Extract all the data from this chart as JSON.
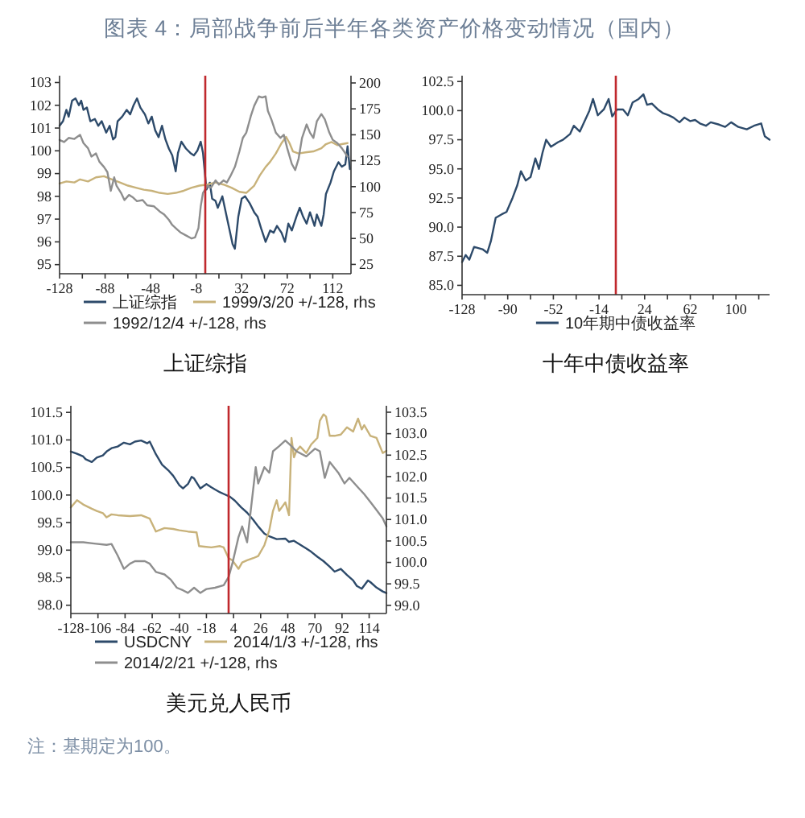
{
  "chart_data": [
    {
      "type": "line",
      "title": "上证综指",
      "annotations": [
        "图表 4：局部战争前后半年各类资产价格变动情况（国内）"
      ],
      "legend": "bottom",
      "xlim": [
        -128,
        128
      ],
      "xticks": [
        -128,
        {
          "value": -108,
          "label": null
        },
        -88,
        {
          "value": -68,
          "label": null
        },
        -48,
        {
          "value": -28,
          "label": null
        },
        -8,
        {
          "value": 12,
          "label": null
        },
        32,
        {
          "value": 52,
          "label": null
        },
        72,
        {
          "value": 92,
          "label": null
        },
        112
      ],
      "ylim": [
        94.6,
        103.3
      ],
      "yticks": [
        95,
        96,
        97,
        98,
        99,
        100,
        101,
        102,
        103
      ],
      "y2lim": [
        16,
        207
      ],
      "y2ticks": [
        25,
        50,
        75,
        100,
        125,
        150,
        175,
        200
      ],
      "ref_lines": [
        {
          "axis": "x",
          "value": 0,
          "color": "#c0282d"
        }
      ],
      "series": [
        {
          "name": "上证综指",
          "color": "#2d4a6a",
          "x": [
            -128,
            -125,
            -122,
            -120,
            -117,
            -114,
            -111,
            -109,
            -107,
            -104,
            -101,
            -97,
            -94,
            -91,
            -87,
            -84,
            -81,
            -79,
            -77,
            -73,
            -69,
            -66,
            -63,
            -60,
            -57,
            -53,
            -50,
            -47,
            -44,
            -41,
            -38,
            -35,
            -32,
            -29,
            -26,
            -24,
            -21,
            -17,
            -13,
            -10,
            -7,
            -4,
            -2,
            1,
            4,
            6,
            9,
            11,
            15,
            18,
            21,
            24,
            26,
            29,
            32,
            35,
            39,
            43,
            46,
            49,
            53,
            57,
            60,
            63,
            67,
            70,
            73,
            76,
            80,
            83,
            86,
            89,
            92,
            96,
            98,
            102,
            104,
            106,
            110,
            113,
            117,
            120,
            123,
            125,
            127
          ],
          "values": [
            101.1,
            101.3,
            101.8,
            101.5,
            102.2,
            102.3,
            102.0,
            102.2,
            101.8,
            101.9,
            101.3,
            101.4,
            101.1,
            101.3,
            100.8,
            101.1,
            100.5,
            100.6,
            101.3,
            101.5,
            101.8,
            101.6,
            102.0,
            102.3,
            101.9,
            101.6,
            101.2,
            101.5,
            100.9,
            100.6,
            101.1,
            100.5,
            100.1,
            99.8,
            99.1,
            99.9,
            100.4,
            100.1,
            99.9,
            99.8,
            100.0,
            100.4,
            99.9,
            98.3,
            98.6,
            97.9,
            97.8,
            97.5,
            98.0,
            97.3,
            96.6,
            95.9,
            95.7,
            97.1,
            97.9,
            98.0,
            97.7,
            97.3,
            97.1,
            96.6,
            96.0,
            96.5,
            96.4,
            96.7,
            96.4,
            96.0,
            96.8,
            96.5,
            97.1,
            97.5,
            97.1,
            96.8,
            97.3,
            96.7,
            97.2,
            96.7,
            97.2,
            98.1,
            98.6,
            99.1,
            99.5,
            99.3,
            99.4,
            100.2,
            99.2
          ]
        },
        {
          "name": "1999/3/20 +/-128, rhs",
          "color": "#c8b27a",
          "axis": "y2",
          "x": [
            -128,
            -122,
            -115,
            -110,
            -103,
            -96,
            -89,
            -82,
            -75,
            -68,
            -61,
            -54,
            -47,
            -40,
            -33,
            -26,
            -19,
            -12,
            -5,
            2,
            9,
            16,
            23,
            30,
            36,
            43,
            48,
            53,
            57,
            62,
            67,
            71,
            74,
            77,
            82,
            88,
            95,
            102,
            106,
            111,
            116,
            120,
            125
          ],
          "values": [
            103,
            105,
            104,
            107,
            105,
            109,
            110,
            107,
            104,
            101,
            99,
            97,
            96,
            94,
            93,
            94,
            96,
            99,
            101,
            102,
            104,
            102,
            99,
            95,
            94,
            101,
            111,
            119,
            124,
            132,
            142,
            148,
            142,
            134,
            132,
            133,
            134,
            137,
            141,
            143,
            140,
            141,
            142
          ]
        },
        {
          "name": "1992/12/4 +/-128, rhs",
          "color": "#8e8e8e",
          "axis": "y2",
          "x": [
            -128,
            -124,
            -120,
            -115,
            -110,
            -107,
            -103,
            -100,
            -96,
            -93,
            -89,
            -86,
            -83,
            -80,
            -78,
            -74,
            -71,
            -67,
            -64,
            -60,
            -55,
            -51,
            -45,
            -40,
            -36,
            -32,
            -29,
            -25,
            -22,
            -17,
            -12,
            -9,
            -6,
            -4,
            -2,
            2,
            5,
            9,
            12,
            16,
            19,
            22,
            26,
            30,
            33,
            36,
            40,
            43,
            47,
            50,
            53,
            55,
            58,
            62,
            66,
            69,
            72,
            76,
            79,
            82,
            85,
            89,
            92,
            95,
            98,
            102,
            105,
            109,
            112,
            116,
            120,
            125
          ],
          "values": [
            145,
            143,
            147,
            146,
            150,
            142,
            137,
            129,
            132,
            124,
            119,
            114,
            96,
            109,
            101,
            94,
            87,
            92,
            90,
            86,
            87,
            82,
            81,
            76,
            73,
            68,
            63,
            59,
            56,
            53,
            50,
            51,
            60,
            81,
            94,
            101,
            99,
            106,
            102,
            106,
            104,
            110,
            119,
            134,
            147,
            152,
            168,
            178,
            187,
            186,
            187,
            173,
            165,
            152,
            147,
            150,
            137,
            122,
            116,
            127,
            147,
            160,
            152,
            147,
            163,
            170,
            165,
            152,
            145,
            142,
            137,
            129
          ]
        }
      ]
    },
    {
      "type": "line",
      "title": "十年中债收益率",
      "legend": "bottom",
      "xlim": [
        -128,
        128
      ],
      "xticks": [
        -128,
        {
          "value": -109,
          "label": null
        },
        -90,
        {
          "value": -71,
          "label": null
        },
        -52,
        {
          "value": -33,
          "label": null
        },
        -14,
        {
          "value": 5,
          "label": null
        },
        24,
        {
          "value": 43,
          "label": null
        },
        62,
        {
          "value": 81,
          "label": null
        },
        100,
        {
          "value": 119,
          "label": null
        }
      ],
      "ylim": [
        84.2,
        103
      ],
      "yticks": [
        {
          "value": 85,
          "label": "85.0"
        },
        87.5,
        {
          "value": 90,
          "label": "90.0"
        },
        92.5,
        {
          "value": 95,
          "label": "95.0"
        },
        97.5,
        {
          "value": 100,
          "label": "100.0"
        },
        102.5
      ],
      "ref_lines": [
        {
          "axis": "x",
          "value": 0,
          "color": "#c0282d"
        }
      ],
      "series": [
        {
          "name": "10年期中债收益率",
          "color": "#2d4a6a",
          "x": [
            -128,
            -125,
            -122,
            -118,
            -111,
            -107,
            -104,
            -100,
            -95,
            -91,
            -86,
            -82,
            -79,
            -75,
            -71,
            -67,
            -64,
            -61,
            -58,
            -54,
            -48,
            -44,
            -38,
            -35,
            -30,
            -26,
            -22,
            -19,
            -15,
            -10,
            -6,
            -3,
            1,
            6,
            10,
            14,
            19,
            23,
            26,
            30,
            35,
            39,
            44,
            48,
            53,
            57,
            62,
            66,
            70,
            75,
            79,
            86,
            91,
            96,
            102,
            109,
            115,
            121,
            124,
            128
          ],
          "values": [
            87.0,
            87.6,
            87.2,
            88.3,
            88.1,
            87.8,
            88.8,
            90.8,
            91.1,
            91.3,
            92.5,
            93.6,
            94.8,
            94.0,
            94.3,
            95.9,
            95.0,
            96.4,
            97.5,
            96.9,
            97.3,
            97.5,
            98.0,
            98.7,
            98.2,
            99.1,
            100.0,
            101.0,
            99.6,
            100.1,
            101.0,
            99.5,
            100.1,
            100.1,
            99.6,
            100.7,
            101.0,
            101.4,
            100.5,
            100.6,
            100.1,
            99.8,
            99.6,
            99.4,
            99.0,
            99.4,
            99.1,
            99.2,
            98.9,
            98.7,
            99.0,
            98.8,
            98.6,
            99.0,
            98.6,
            98.4,
            98.7,
            98.9,
            97.8,
            97.5
          ]
        }
      ]
    },
    {
      "type": "line",
      "title": "美元兑人民币",
      "annotations": [
        "注：基期定为100。"
      ],
      "legend": "bottom",
      "xlim": [
        -128,
        128
      ],
      "xticks": [
        -128,
        -106,
        -84,
        -62,
        -40,
        -18,
        4,
        26,
        48,
        70,
        92,
        114
      ],
      "ylim": [
        97.85,
        101.62
      ],
      "yticks": [
        {
          "value": 98,
          "label": "98.0"
        },
        98.5,
        {
          "value": 99,
          "label": "99.0"
        },
        99.5,
        {
          "value": 100,
          "label": "100.0"
        },
        100.5,
        {
          "value": 101,
          "label": "101.0"
        },
        101.5
      ],
      "y2lim": [
        98.81,
        103.65
      ],
      "y2ticks": [
        {
          "value": 99,
          "label": "99.0"
        },
        99.5,
        {
          "value": 100,
          "label": "100.0"
        },
        100.5,
        {
          "value": 101,
          "label": "101.0"
        },
        101.5,
        {
          "value": 102,
          "label": "102.0"
        },
        102.5,
        {
          "value": 103,
          "label": "103.0"
        },
        103.5
      ],
      "ref_lines": [
        {
          "axis": "x",
          "value": 0,
          "color": "#c0282d"
        }
      ],
      "series": [
        {
          "name": "USDCNY",
          "color": "#2d4a6a",
          "x": [
            -128,
            -123,
            -118,
            -116,
            -111,
            -107,
            -102,
            -99,
            -95,
            -90,
            -85,
            -80,
            -76,
            -71,
            -66,
            -64,
            -59,
            -54,
            -49,
            -45,
            -40,
            -37,
            -33,
            -30,
            -28,
            -23,
            -18,
            -14,
            -11,
            -7,
            -4,
            1,
            5,
            10,
            15,
            20,
            24,
            29,
            33,
            39,
            46,
            49,
            53,
            58,
            63,
            67,
            72,
            77,
            82,
            86,
            91,
            96,
            101,
            104,
            108,
            113,
            115,
            120,
            125,
            128
          ],
          "values": [
            100.79,
            100.75,
            100.7,
            100.65,
            100.6,
            100.68,
            100.72,
            100.79,
            100.85,
            100.88,
            100.95,
            100.92,
            100.97,
            100.99,
            100.94,
            100.97,
            100.74,
            100.55,
            100.45,
            100.35,
            100.18,
            100.12,
            100.2,
            100.33,
            100.3,
            100.12,
            100.2,
            100.14,
            100.1,
            100.05,
            100.02,
            99.97,
            99.9,
            99.78,
            99.68,
            99.55,
            99.43,
            99.3,
            99.25,
            99.2,
            99.21,
            99.15,
            99.17,
            99.1,
            99.03,
            98.97,
            98.88,
            98.8,
            98.7,
            98.61,
            98.66,
            98.55,
            98.45,
            98.35,
            98.3,
            98.45,
            98.42,
            98.32,
            98.25,
            98.22
          ]
        },
        {
          "name": "2014/1/3 +/-128, rhs",
          "color": "#c8b27a",
          "axis": "y2",
          "x": [
            -128,
            -123,
            -118,
            -111,
            -107,
            -102,
            -99,
            -95,
            -90,
            -80,
            -71,
            -64,
            -59,
            -52,
            -45,
            -40,
            -33,
            -26,
            -24,
            -14,
            -7,
            -4,
            0,
            3,
            8,
            11,
            15,
            20,
            24,
            29,
            33,
            36,
            39,
            41,
            46,
            49,
            51,
            53,
            55,
            58,
            63,
            67,
            72,
            74,
            77,
            79,
            82,
            86,
            91,
            96,
            101,
            105,
            108,
            110,
            115,
            120,
            125,
            128
          ],
          "values": [
            101.28,
            101.45,
            101.35,
            101.25,
            101.2,
            101.15,
            101.05,
            101.12,
            101.1,
            101.08,
            101.1,
            101.02,
            100.72,
            100.8,
            100.78,
            100.75,
            100.72,
            100.7,
            100.38,
            100.35,
            100.38,
            100.35,
            100.1,
            100.05,
            99.85,
            100.0,
            100.05,
            100.1,
            100.15,
            100.4,
            100.75,
            101.2,
            101.45,
            101.2,
            101.4,
            101.1,
            102.9,
            102.45,
            102.6,
            102.7,
            102.55,
            102.75,
            102.9,
            103.3,
            103.45,
            103.4,
            102.95,
            102.95,
            102.98,
            103.15,
            103.05,
            103.35,
            103.1,
            103.2,
            102.95,
            102.9,
            102.55,
            102.6
          ]
        },
        {
          "name": "2014/2/21 +/-128, rhs",
          "color": "#8e8e8e",
          "axis": "y2",
          "x": [
            -128,
            -118,
            -109,
            -99,
            -95,
            -90,
            -85,
            -80,
            -76,
            -68,
            -64,
            -59,
            -52,
            -47,
            -42,
            -37,
            -33,
            -28,
            -23,
            -18,
            -11,
            -4,
            0,
            3,
            8,
            11,
            15,
            19,
            22,
            24,
            29,
            33,
            36,
            41,
            46,
            51,
            55,
            63,
            70,
            74,
            78,
            82,
            89,
            94,
            98,
            104,
            110,
            115,
            120,
            125,
            128
          ],
          "values": [
            100.47,
            100.47,
            100.44,
            100.41,
            100.43,
            100.16,
            99.85,
            99.97,
            100.03,
            100.03,
            99.97,
            99.78,
            99.72,
            99.6,
            99.41,
            99.35,
            99.29,
            99.41,
            99.29,
            99.38,
            99.41,
            99.47,
            99.66,
            99.97,
            100.59,
            100.84,
            100.47,
            101.47,
            102.22,
            101.84,
            102.22,
            102.09,
            102.59,
            102.71,
            102.84,
            102.71,
            102.59,
            102.47,
            102.65,
            102.59,
            101.97,
            102.34,
            102.09,
            101.84,
            101.97,
            101.78,
            101.59,
            101.41,
            101.22,
            101.03,
            100.84
          ]
        }
      ]
    }
  ]
}
